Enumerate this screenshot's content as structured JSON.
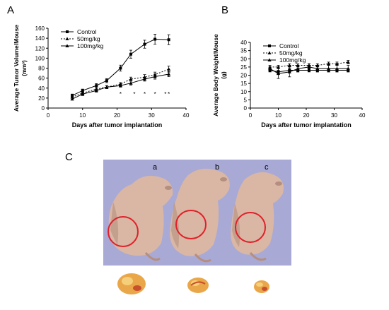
{
  "panels": {
    "a": "A",
    "b": "B",
    "c": "C"
  },
  "chart_data": [
    {
      "type": "line",
      "title": "",
      "xlabel": "Days after tumor implantation",
      "ylabel": "Average Tumor Volume/Mouse",
      "ylabel_unit": "(mm³)",
      "xlim": [
        0,
        40
      ],
      "ylim": [
        0,
        160
      ],
      "xticks": [
        "0",
        "10",
        "20",
        "30",
        "40"
      ],
      "yticks": [
        "0",
        "20",
        "40",
        "60",
        "80",
        "100",
        "120",
        "140",
        "160"
      ],
      "grid": false,
      "legend": "top-left",
      "significance_mark": "*",
      "significance_x": [
        21,
        25,
        28,
        31,
        34,
        35
      ],
      "series": [
        {
          "name": "Control",
          "style": "solid-square",
          "x": [
            7,
            10,
            14,
            17,
            21,
            24,
            28,
            31,
            35
          ],
          "y": [
            25,
            35,
            45,
            55,
            80,
            108,
            128,
            138,
            137
          ],
          "err": [
            3,
            3,
            4,
            4,
            6,
            8,
            8,
            10,
            10
          ]
        },
        {
          "name": "50mg/kg",
          "style": "dotted-triangle",
          "x": [
            7,
            10,
            14,
            17,
            21,
            24,
            28,
            31,
            35
          ],
          "y": [
            22,
            30,
            38,
            42,
            48,
            58,
            62,
            67,
            78
          ],
          "err": [
            2,
            3,
            3,
            3,
            3,
            4,
            5,
            5,
            6
          ]
        },
        {
          "name": "100mg/kg",
          "style": "solid-triangle",
          "x": [
            7,
            10,
            14,
            17,
            21,
            24,
            28,
            31,
            35
          ],
          "y": [
            18,
            28,
            35,
            42,
            45,
            50,
            58,
            63,
            68
          ],
          "err": [
            2,
            3,
            3,
            3,
            3,
            4,
            4,
            5,
            5
          ]
        }
      ]
    },
    {
      "type": "line",
      "title": "",
      "xlabel": "Days after tumor implantation",
      "ylabel": "Average Body Weight/Mouse",
      "ylabel_unit": "(g)",
      "xlim": [
        0,
        40
      ],
      "ylim": [
        0,
        40
      ],
      "xticks": [
        "0",
        "10",
        "20",
        "30",
        "40"
      ],
      "yticks": [
        "0",
        "5",
        "10",
        "15",
        "20",
        "25",
        "30",
        "35",
        "40"
      ],
      "grid": false,
      "legend": "top-left",
      "series": [
        {
          "name": "Control",
          "style": "solid-square",
          "x": [
            7,
            10,
            14,
            17,
            21,
            24,
            28,
            31,
            35
          ],
          "y": [
            23,
            22,
            23,
            23,
            23,
            23,
            23,
            23,
            23
          ],
          "err": [
            1,
            1,
            1,
            1,
            1,
            1,
            1,
            1,
            1
          ]
        },
        {
          "name": "50mg/kg",
          "style": "dotted-triangle",
          "x": [
            7,
            10,
            14,
            17,
            21,
            24,
            28,
            31,
            35
          ],
          "y": [
            25,
            25,
            26,
            26,
            26,
            26,
            27,
            27,
            28
          ],
          "err": [
            1,
            1,
            1,
            1,
            1,
            1,
            1,
            1,
            1
          ]
        },
        {
          "name": "100mg/kg",
          "style": "solid-triangle",
          "x": [
            7,
            10,
            14,
            17,
            21,
            24,
            28,
            31,
            35
          ],
          "y": [
            24,
            21,
            22,
            24,
            25,
            24,
            24,
            24,
            24
          ],
          "err": [
            1,
            3,
            3,
            2,
            2,
            2,
            2,
            2,
            2
          ]
        }
      ]
    }
  ],
  "photo": {
    "labels": [
      "a",
      "b",
      "c"
    ],
    "colors": {
      "background": "#a9a9d6",
      "skin": "#d9b7a4",
      "skin_shadow": "#b48f7f",
      "circle": "#e0202a",
      "tumor_tray": "#ffffff",
      "tumor": "#e9a74a"
    }
  }
}
